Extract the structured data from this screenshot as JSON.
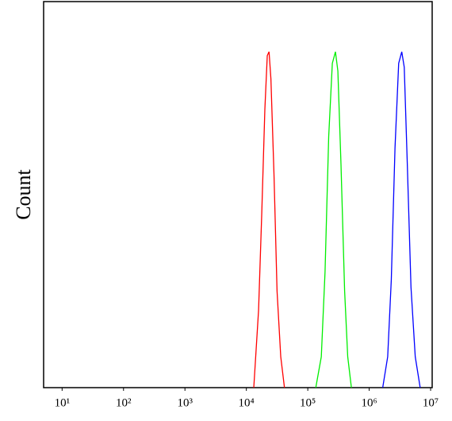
{
  "chart_data": {
    "type": "line",
    "y_label": "Count",
    "xscale": "log",
    "xlim": [
      5,
      10600000
    ],
    "ylim": [
      0,
      100
    ],
    "xticks": [
      {
        "value": 10,
        "label": "10¹"
      },
      {
        "value": 100,
        "label": "10²"
      },
      {
        "value": 1000,
        "label": "10³"
      },
      {
        "value": 10000,
        "label": "10⁴"
      },
      {
        "value": 100000,
        "label": "10⁵"
      },
      {
        "value": 1000000,
        "label": "10⁶"
      },
      {
        "value": 10000000,
        "label": "10⁷"
      }
    ],
    "series": [
      {
        "color": "#ff0000",
        "x": [
          13200,
          15800,
          17800,
          20000,
          21900,
          23400,
          25100,
          28200,
          31600,
          36300,
          41700
        ],
        "values": [
          0,
          20,
          45,
          72,
          86,
          87,
          80,
          55,
          25,
          8,
          0
        ]
      },
      {
        "color": "#00ee00",
        "x": [
          135000,
          166000,
          191000,
          219000,
          251000,
          282000,
          309000,
          347000,
          398000,
          447000,
          513000
        ],
        "values": [
          0,
          8,
          30,
          65,
          84,
          87,
          82,
          58,
          25,
          8,
          0
        ]
      },
      {
        "color": "#0000ff",
        "x": [
          1660000,
          2000000,
          2290000,
          2630000,
          3020000,
          3390000,
          3720000,
          4170000,
          4790000,
          5620000,
          6760000
        ],
        "values": [
          0,
          8,
          28,
          62,
          84,
          87,
          83,
          58,
          26,
          8,
          0
        ]
      }
    ]
  }
}
